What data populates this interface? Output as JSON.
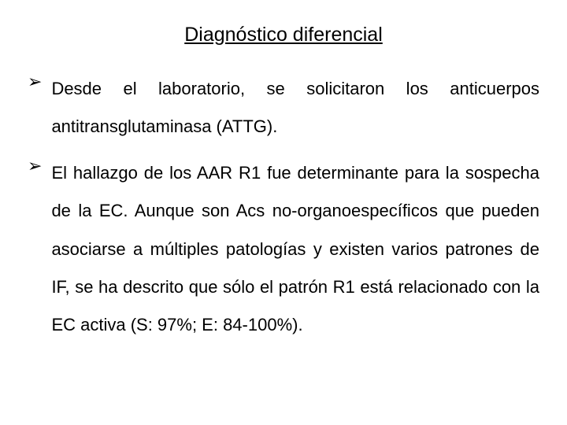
{
  "title": "Diagnóstico diferencial",
  "bullets": [
    {
      "marker": "➢",
      "text": "Desde el laboratorio, se solicitaron los anticuerpos antitransglutaminasa (ATTG)."
    },
    {
      "marker": "➢",
      "text": "El hallazgo de los AAR R1 fue determinante para la sospecha de la EC. Aunque son Acs no-organoespecíficos que pueden asociarse a múltiples patologías y existen varios patrones de IF, se ha descrito que sólo el patrón R1 está relacionado con la EC activa (S: 97%; E: 84-100%)."
    }
  ],
  "styling": {
    "background_color": "#ffffff",
    "text_color": "#000000",
    "title_fontsize": 25,
    "body_fontsize": 22,
    "font_family": "Arial",
    "line_height": 2.2,
    "text_align": "justify",
    "bullet_color": "#000000"
  }
}
